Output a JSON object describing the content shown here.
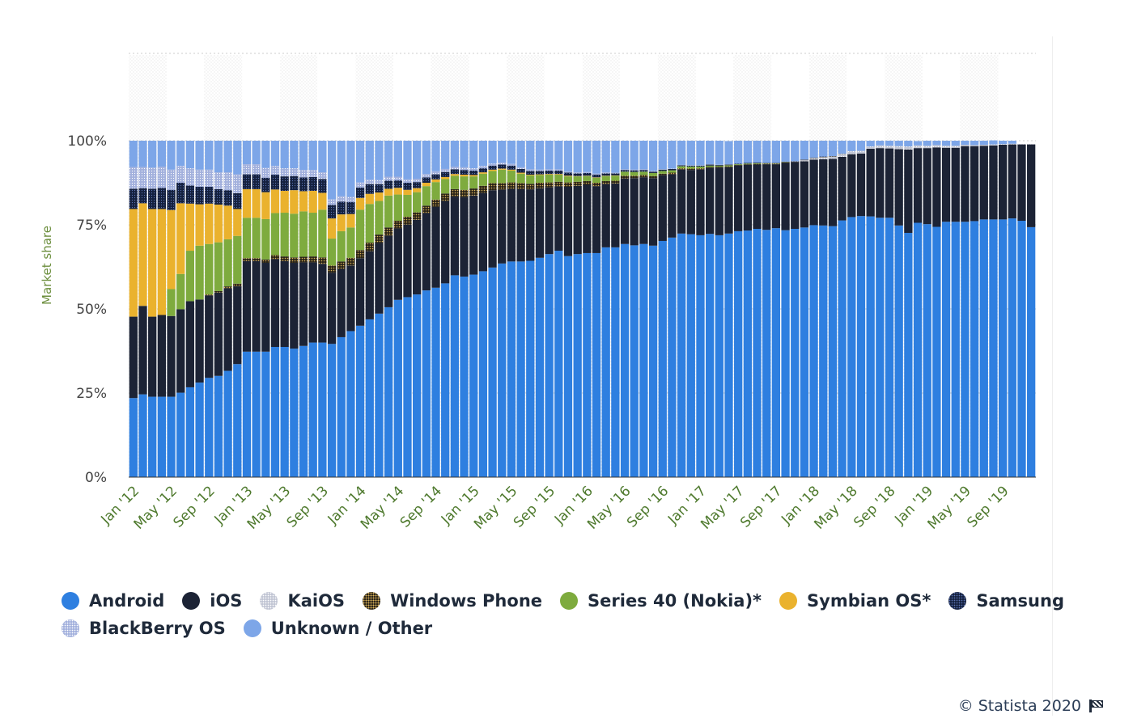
{
  "chart_data": {
    "type": "bar",
    "stacked": true,
    "ylabel": "Market share",
    "y_tick_labels": [
      "0%",
      "25%",
      "50%",
      "75%",
      "100%"
    ],
    "ylim": [
      0,
      100
    ],
    "x_tick_labels": [
      "Jan '12",
      "May '12",
      "Sep '12",
      "Jan '13",
      "May '13",
      "Sep '13",
      "Jan '14",
      "May '14",
      "Sep '14",
      "Jan '15",
      "May '15",
      "Sep '15",
      "Jan '16",
      "May '16",
      "Sep '16",
      "Jan '17",
      "May '17",
      "Sep '17",
      "Jan '18",
      "May '18",
      "Sep '18",
      "Jan '19",
      "May '19",
      "Sep '19"
    ],
    "period": {
      "first": "Jan '12",
      "last": "Dec '19",
      "months": 96
    },
    "legend_position": "bottom",
    "grid": true,
    "series": [
      {
        "name": "Android",
        "color": "#2e7fe0",
        "values": [
          23.5,
          24.6,
          23.9,
          23.9,
          23.9,
          25.1,
          26.7,
          28.1,
          29.5,
          30.1,
          31.6,
          33.6,
          37.3,
          37.3,
          37.3,
          38.7,
          38.7,
          38.2,
          39.0,
          40.0,
          40.0,
          39.6,
          41.6,
          43.4,
          45.0,
          46.9,
          48.6,
          50.5,
          52.7,
          53.5,
          54.3,
          55.5,
          56.3,
          57.6,
          60.0,
          59.6,
          60.2,
          61.2,
          62.3,
          63.5,
          64.1,
          64.1,
          64.3,
          65.2,
          66.3,
          67.3,
          65.7,
          66.3,
          66.6,
          66.6,
          68.3,
          68.3,
          69.3,
          68.9,
          69.3,
          68.8,
          70.2,
          71.2,
          72.4,
          72.2,
          71.9,
          72.3,
          71.9,
          72.4,
          73.1,
          73.3,
          73.8,
          73.5,
          74.0,
          73.4,
          73.8,
          74.2,
          74.9,
          74.8,
          74.6,
          76.3,
          77.3,
          77.6,
          77.5,
          77.1,
          77.1,
          74.8,
          72.6,
          75.6,
          75.2,
          74.4,
          75.9,
          75.9,
          75.9,
          76.1,
          76.6,
          76.6,
          76.6,
          76.9,
          76.2,
          74.3
        ]
      },
      {
        "name": "iOS",
        "color": "#1c2335",
        "values": [
          24.2,
          26.3,
          23.8,
          24.3,
          24.0,
          24.8,
          25.6,
          24.7,
          24.5,
          24.8,
          24.5,
          23.1,
          26.9,
          26.9,
          26.4,
          26.1,
          25.5,
          25.5,
          24.8,
          23.8,
          23.4,
          21.2,
          20.3,
          19.5,
          20.1,
          20.3,
          21.0,
          21.2,
          21.2,
          21.6,
          22.2,
          23.0,
          24.0,
          24.5,
          23.4,
          23.6,
          23.5,
          23.3,
          23.0,
          21.9,
          21.6,
          21.5,
          21.2,
          20.7,
          19.8,
          19.1,
          20.6,
          20.3,
          20.3,
          19.9,
          18.8,
          19.0,
          19.5,
          20.0,
          19.8,
          20.1,
          19.5,
          18.8,
          19.0,
          19.1,
          19.5,
          19.6,
          20.1,
          19.7,
          19.5,
          19.5,
          19.1,
          19.5,
          19.0,
          20.0,
          19.9,
          19.7,
          19.5,
          19.7,
          20.0,
          18.9,
          18.7,
          18.6,
          20.1,
          20.7,
          20.6,
          22.7,
          24.8,
          22.2,
          22.6,
          23.6,
          22.0,
          22.0,
          22.5,
          22.3,
          21.9,
          22.0,
          22.2,
          22.0,
          22.7,
          24.6
        ]
      },
      {
        "name": "KaiOS",
        "color": "#c2c6d4",
        "values": [
          0,
          0,
          0,
          0,
          0,
          0,
          0,
          0,
          0,
          0,
          0,
          0,
          0,
          0,
          0,
          0,
          0,
          0,
          0,
          0,
          0,
          0,
          0,
          0,
          0,
          0,
          0,
          0,
          0,
          0,
          0,
          0,
          0,
          0,
          0,
          0,
          0,
          0,
          0,
          0,
          0,
          0,
          0,
          0,
          0,
          0,
          0,
          0,
          0,
          0,
          0,
          0,
          0,
          0,
          0,
          0,
          0,
          0,
          0,
          0,
          0,
          0,
          0,
          0,
          0,
          0,
          0,
          0,
          0,
          0,
          0,
          0.3,
          0.4,
          0.6,
          0.6,
          0.8,
          0.9,
          0.8,
          0.7,
          0.8,
          0.8,
          0.9,
          0.9,
          0.8,
          0.7,
          0.7,
          0.6,
          0.6,
          0.4,
          0.3,
          0.3,
          0.3,
          0.2,
          0.2,
          0.1,
          0.1
        ]
      },
      {
        "name": "Windows Phone",
        "color": "#4a4028",
        "values": [
          0,
          0,
          0,
          0,
          0,
          0,
          0,
          0,
          0.3,
          0.4,
          0.6,
          0.8,
          0.9,
          0.9,
          1.0,
          1.2,
          1.4,
          1.6,
          1.7,
          1.8,
          1.9,
          2.1,
          2.2,
          2.3,
          2.4,
          2.5,
          2.5,
          2.5,
          2.3,
          2.3,
          2.2,
          2.2,
          2.2,
          2.2,
          2.2,
          2.2,
          2.1,
          2.1,
          2.1,
          2.0,
          1.9,
          1.8,
          1.7,
          1.6,
          1.5,
          1.4,
          1.3,
          1.2,
          1.1,
          1.0,
          0.9,
          0.8,
          0.8,
          0.7,
          0.7,
          0.6,
          0.5,
          0.5,
          0.4,
          0.4,
          0.4,
          0.3,
          0.3,
          0.3,
          0.2,
          0.2,
          0.2,
          0.2,
          0.2,
          0.2,
          0.1,
          0.1,
          0.1,
          0.1,
          0.1,
          0.1,
          0,
          0,
          0,
          0,
          0,
          0,
          0,
          0,
          0,
          0,
          0,
          0,
          0,
          0,
          0,
          0,
          0,
          0,
          0,
          0
        ]
      },
      {
        "name": "Series 40 (Nokia)*",
        "color": "#7eab3e",
        "values": [
          0,
          0,
          0,
          0,
          8.0,
          10.5,
          15.0,
          16.0,
          15.0,
          14.5,
          14.0,
          14.2,
          12.0,
          12.0,
          12.0,
          12.5,
          13.0,
          13.0,
          13.5,
          13.0,
          14.2,
          8.0,
          9.0,
          9.0,
          12.0,
          11.5,
          10.0,
          9.5,
          7.8,
          6.5,
          6.0,
          5.8,
          5.2,
          4.3,
          4.0,
          4.0,
          3.6,
          3.6,
          3.6,
          4.0,
          3.5,
          2.8,
          2.5,
          2.3,
          2.3,
          2.1,
          1.8,
          1.6,
          1.5,
          1.5,
          1.5,
          1.5,
          1.2,
          1.1,
          1.0,
          0.9,
          0.8,
          0.7,
          0.6,
          0.6,
          0.5,
          0.4,
          0.3,
          0.3,
          0.2,
          0.2,
          0.2,
          0.1,
          0.1,
          0.1,
          0,
          0,
          0,
          0,
          0,
          0,
          0,
          0,
          0,
          0,
          0,
          0,
          0,
          0,
          0,
          0,
          0,
          0,
          0,
          0,
          0,
          0,
          0,
          0,
          0,
          0
        ]
      },
      {
        "name": "Symbian OS*",
        "color": "#eab22e",
        "values": [
          32.0,
          30.5,
          32.0,
          31.5,
          23.5,
          21.0,
          14.0,
          12.3,
          12.0,
          11.2,
          10.0,
          8.0,
          8.5,
          8.5,
          8.0,
          7.0,
          6.5,
          7.0,
          6.0,
          6.5,
          5.0,
          6.0,
          5.0,
          4.0,
          3.5,
          3.0,
          2.5,
          2.0,
          2.0,
          1.5,
          1.2,
          1.0,
          0.8,
          0.6,
          0.5,
          0.5,
          0.4,
          0.4,
          0.4,
          0.3,
          0.3,
          0.3,
          0.2,
          0.2,
          0.2,
          0.2,
          0.2,
          0.1,
          0.1,
          0.1,
          0.1,
          0.1,
          0,
          0,
          0,
          0,
          0,
          0,
          0,
          0,
          0,
          0,
          0,
          0,
          0,
          0,
          0,
          0,
          0,
          0,
          0,
          0,
          0,
          0,
          0,
          0,
          0,
          0,
          0,
          0,
          0,
          0,
          0,
          0,
          0,
          0,
          0,
          0,
          0,
          0,
          0,
          0,
          0,
          0,
          0,
          0
        ]
      },
      {
        "name": "Samsung",
        "color": "#1a2950",
        "values": [
          6.0,
          4.5,
          6.0,
          6.3,
          6.0,
          6.1,
          5.4,
          5.2,
          5.0,
          4.6,
          4.6,
          4.7,
          4.4,
          4.4,
          4.3,
          4.4,
          4.3,
          4.2,
          4.1,
          4.1,
          4.1,
          4.0,
          3.8,
          3.6,
          3.1,
          2.9,
          2.5,
          2.4,
          2.2,
          2.1,
          1.8,
          1.6,
          1.5,
          1.5,
          1.4,
          1.4,
          1.3,
          1.2,
          1.2,
          1.2,
          1.2,
          1.1,
          1.1,
          1.0,
          1.0,
          1.0,
          0.9,
          0.8,
          0.8,
          0.8,
          0.7,
          0.6,
          0.5,
          0.5,
          0.5,
          0.4,
          0.4,
          0.4,
          0.3,
          0.3,
          0.3,
          0.3,
          0.2,
          0.2,
          0.2,
          0.2,
          0.2,
          0.1,
          0.1,
          0.1,
          0.1,
          0.1,
          0.1,
          0.1,
          0.1,
          0,
          0,
          0,
          0,
          0,
          0,
          0,
          0,
          0,
          0,
          0,
          0,
          0,
          0,
          0,
          0,
          0,
          0,
          0,
          0,
          0
        ]
      },
      {
        "name": "BlackBerry OS",
        "color": "#a3b1dd",
        "values": [
          6.5,
          6.3,
          6.3,
          6.3,
          6.0,
          5.0,
          5.1,
          5.1,
          5.1,
          5.0,
          5.3,
          5.6,
          3.0,
          3.0,
          2.9,
          2.6,
          2.4,
          2.3,
          2.2,
          2.1,
          2.0,
          1.7,
          1.6,
          1.5,
          1.5,
          1.3,
          1.2,
          1.2,
          1.1,
          1.0,
          1.0,
          1.0,
          0.9,
          0.9,
          0.8,
          0.8,
          0.7,
          0.7,
          0.6,
          0.6,
          0.5,
          0.5,
          0.5,
          0.4,
          0.4,
          0.4,
          0.3,
          0.3,
          0.3,
          0.3,
          0.3,
          0.2,
          0.2,
          0.2,
          0.2,
          0.2,
          0.1,
          0.1,
          0.1,
          0.1,
          0.1,
          0.1,
          0.1,
          0.1,
          0,
          0,
          0,
          0,
          0,
          0,
          0,
          0,
          0,
          0,
          0,
          0,
          0,
          0,
          0,
          0,
          0,
          0,
          0,
          0,
          0,
          0,
          0,
          0,
          0,
          0,
          0,
          0,
          0,
          0,
          0,
          0
        ]
      },
      {
        "name": "Unknown / Other",
        "color": "#7da6e8",
        "values": [
          7.8,
          7.8,
          8.0,
          7.7,
          8.6,
          7.5,
          8.2,
          8.6,
          8.6,
          9.4,
          9.4,
          10.0,
          7.0,
          7.0,
          8.1,
          7.5,
          8.2,
          8.2,
          8.7,
          8.7,
          9.4,
          17.4,
          16.5,
          16.7,
          12.4,
          11.6,
          11.7,
          10.7,
          10.7,
          11.5,
          11.3,
          9.9,
          9.1,
          8.4,
          7.7,
          7.9,
          8.2,
          7.5,
          6.8,
          6.5,
          6.9,
          7.9,
          8.5,
          8.6,
          8.5,
          8.5,
          9.2,
          9.4,
          9.3,
          9.8,
          9.4,
          9.5,
          8.5,
          8.6,
          8.5,
          9.0,
          8.5,
          8.3,
          7.2,
          7.3,
          7.3,
          7.0,
          7.1,
          6.9,
          6.8,
          6.6,
          6.5,
          6.6,
          6.6,
          6.2,
          6.1,
          5.6,
          5.0,
          4.7,
          4.6,
          3.9,
          3.1,
          3.0,
          1.7,
          1.4,
          1.5,
          1.6,
          1.7,
          1.3,
          1.5,
          1.3,
          1.5,
          1.5,
          1.2,
          1.3,
          1.2,
          1.2,
          1.0,
          0.9,
          0,
          0
        ]
      }
    ]
  },
  "credit": {
    "text": "© Statista 2020"
  },
  "legend": {
    "rows": [
      [
        "Android",
        "iOS",
        "KaiOS",
        "Windows Phone",
        "Series 40 (Nokia)*",
        "Symbian OS*",
        "Samsung"
      ],
      [
        "BlackBerry OS",
        "Unknown / Other"
      ]
    ]
  }
}
